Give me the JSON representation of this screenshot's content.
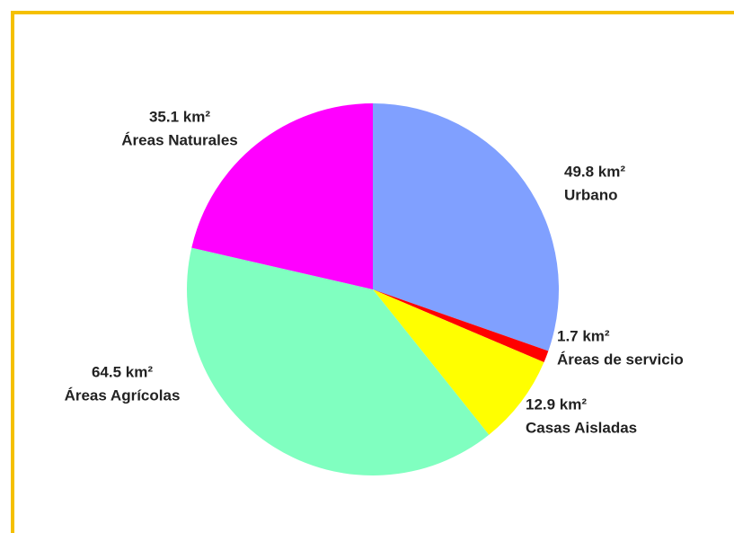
{
  "chart_data": {
    "type": "pie",
    "categories": [
      "Urbano",
      "Áreas de servicio",
      "Casas Aisladas",
      "Áreas Agrícolas",
      "Áreas Naturales"
    ],
    "values": [
      49.8,
      1.7,
      12.9,
      64.5,
      35.1
    ],
    "value_labels": [
      "49.8 km²",
      "1.7 km²",
      "12.9 km²",
      "64.5 km²",
      "35.1 km²"
    ],
    "colors": [
      "#80a0ff",
      "#ff0000",
      "#ffff00",
      "#80ffc0",
      "#ff00ff"
    ]
  }
}
